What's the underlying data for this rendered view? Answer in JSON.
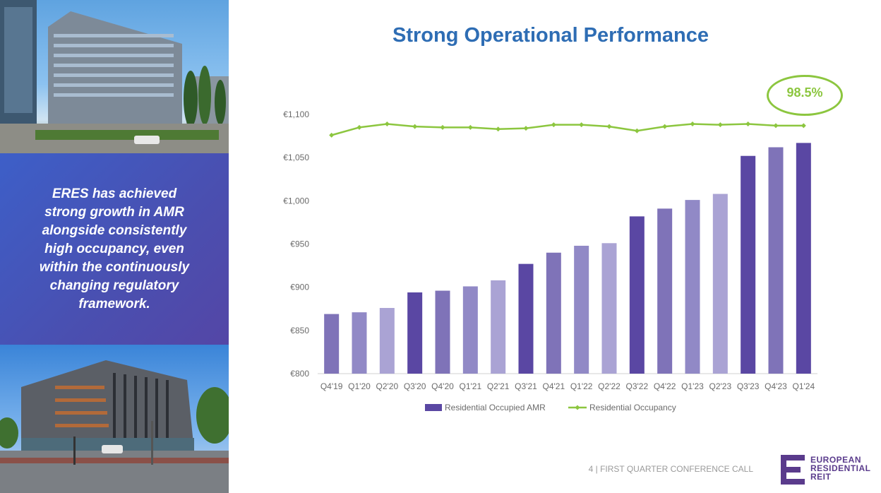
{
  "slide": {
    "title": "Strong Operational Performance",
    "sidebar_text": "ERES has achieved strong growth in AMR alongside consistently high occupancy, even within the continuously changing regulatory framework.",
    "callout": "98.5%",
    "footer": "4 | FIRST QUARTER CONFERENCE CALL",
    "logo_text": "EUROPEAN\nRESIDENTIAL\nREIT"
  },
  "chart_data": {
    "type": "bar",
    "categories": [
      "Q4'19",
      "Q1'20",
      "Q2'20",
      "Q3'20",
      "Q4'20",
      "Q1'21",
      "Q2'21",
      "Q3'21",
      "Q4'21",
      "Q1'22",
      "Q2'22",
      "Q3'22",
      "Q4'22",
      "Q1'23",
      "Q2'23",
      "Q3'23",
      "Q4'23",
      "Q1'24"
    ],
    "ylim": [
      800,
      1100
    ],
    "yticks": [
      "€800",
      "€850",
      "€900",
      "€950",
      "€1,000",
      "€1,050",
      "€1,100"
    ],
    "series": [
      {
        "name": "Residential Occupied AMR",
        "kind": "bar",
        "values": [
          869,
          871,
          876,
          894,
          896,
          901,
          908,
          927,
          940,
          948,
          951,
          982,
          991,
          1001,
          1008,
          1052,
          1062,
          1067
        ],
        "colors": [
          "#7f73b8",
          "#9189c6",
          "#aaa3d4",
          "#5a47a3",
          "#7f73b8",
          "#9189c6",
          "#aaa3d4",
          "#5a47a3",
          "#7f73b8",
          "#9189c6",
          "#aaa3d4",
          "#5a47a3",
          "#7f73b8",
          "#9189c6",
          "#aaa3d4",
          "#5a47a3",
          "#7f73b8",
          "#5a47a3"
        ]
      },
      {
        "name": "Residential Occupancy",
        "kind": "line",
        "color": "#8cc63f",
        "values": [
          1076,
          1085,
          1089,
          1086,
          1085,
          1085,
          1083,
          1084,
          1088,
          1088,
          1086,
          1081,
          1086,
          1089,
          1088,
          1089,
          1087,
          1087
        ]
      }
    ],
    "legend_position": "bottom",
    "grid": false
  }
}
